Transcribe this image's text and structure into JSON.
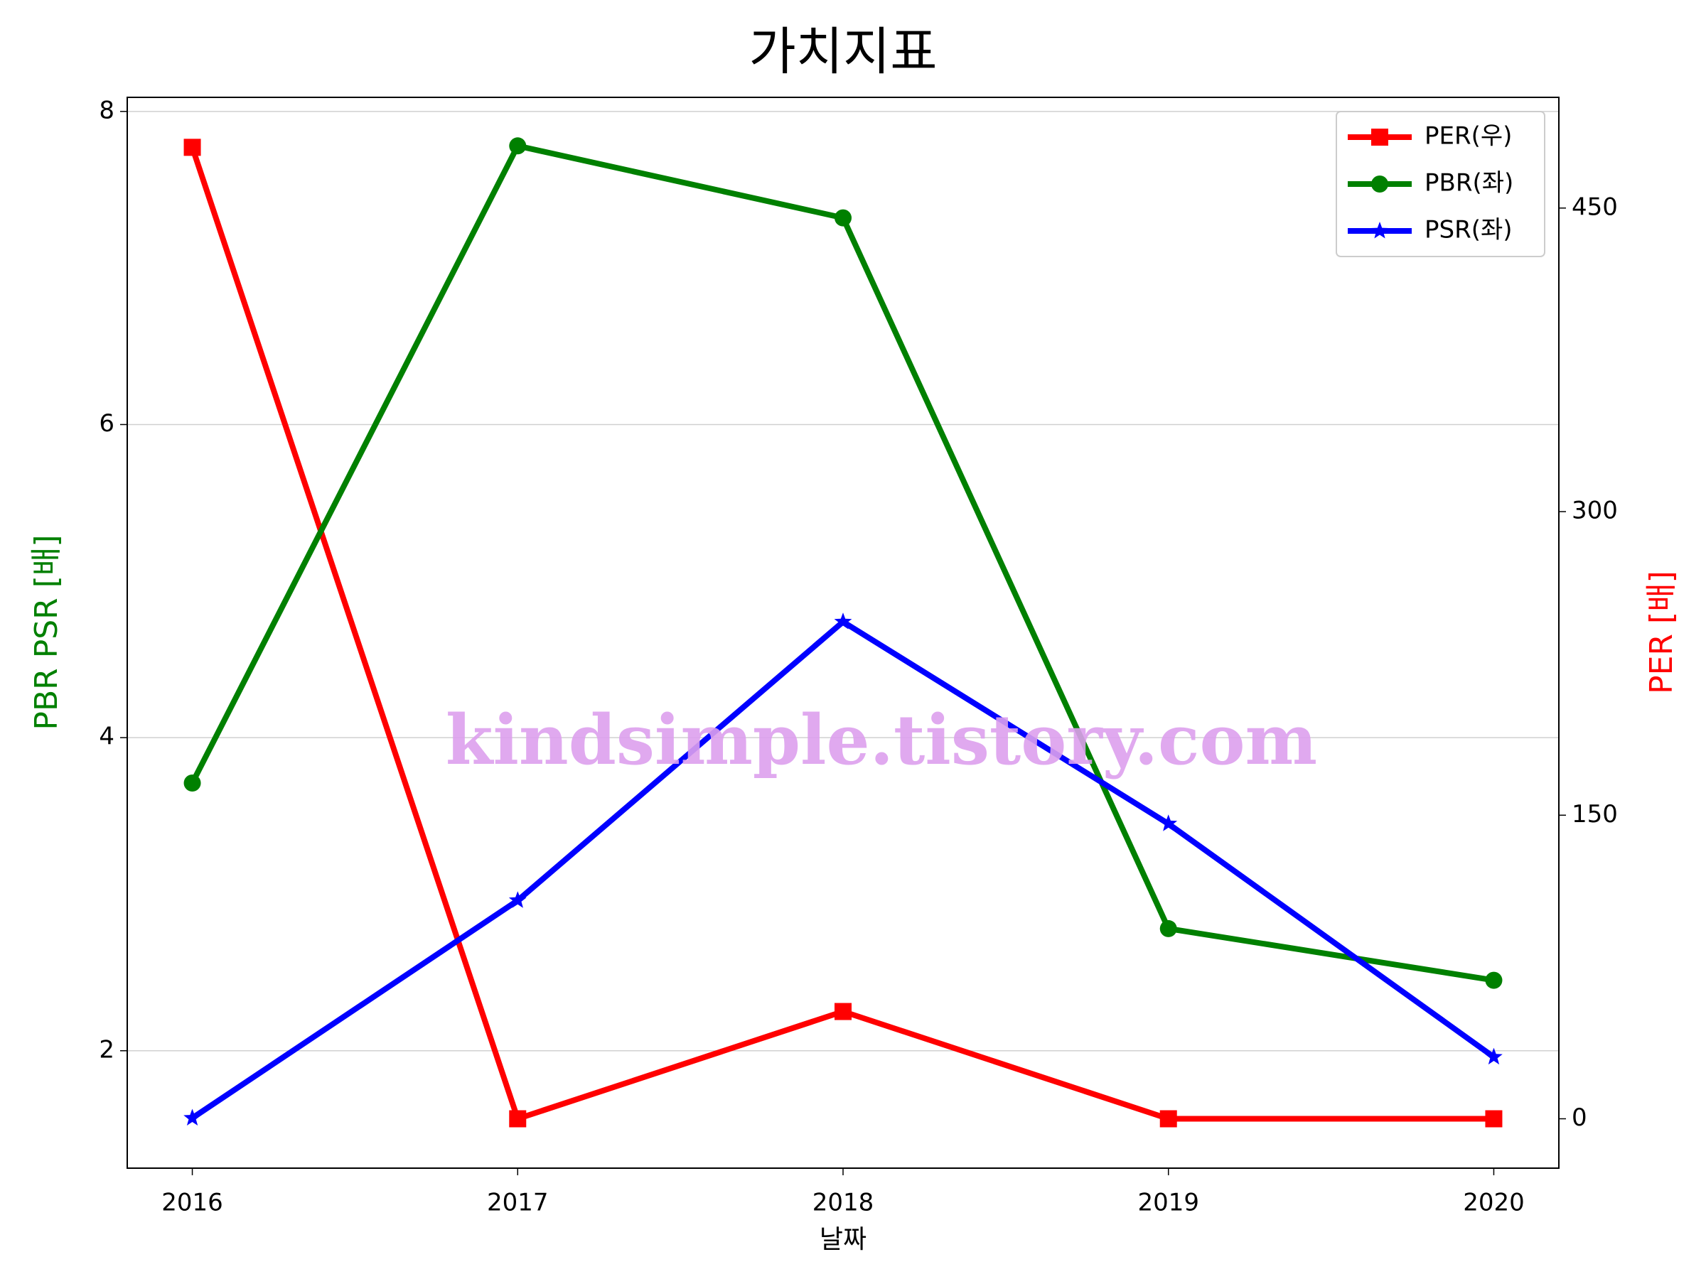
{
  "chart_data": {
    "type": "line",
    "title": "가치지표",
    "xlabel": "날짜",
    "ylabel": "PBR PSR [배]",
    "y2label": "PER [배]",
    "ylabel_color": "green",
    "y2label_color": "red",
    "x": [
      2016,
      2017,
      2018,
      2019,
      2020
    ],
    "xlim": [
      2015.8,
      2020.2
    ],
    "xticks": [
      2016,
      2017,
      2018,
      2019,
      2020
    ],
    "ylim": [
      1.25,
      8.09
    ],
    "yticks": [
      2,
      4,
      6,
      8
    ],
    "y2lim": [
      -24.4,
      504.7
    ],
    "y2ticks": [
      0,
      150,
      300,
      450
    ],
    "grid": true,
    "legend_loc": "upper right",
    "annotation": "kindsimple.tistory.com",
    "series": [
      {
        "name": "PER(우)",
        "color": "red",
        "marker": "square",
        "axis": "y2",
        "values": [
          480,
          0,
          53,
          0,
          0
        ]
      },
      {
        "name": "PBR(좌)",
        "color": "green",
        "marker": "circle",
        "values": [
          3.71,
          7.78,
          7.32,
          2.78,
          2.45
        ]
      },
      {
        "name": "PSR(좌)",
        "color": "blue",
        "marker": "star",
        "values": [
          1.57,
          2.96,
          4.74,
          3.45,
          1.96
        ]
      }
    ]
  }
}
